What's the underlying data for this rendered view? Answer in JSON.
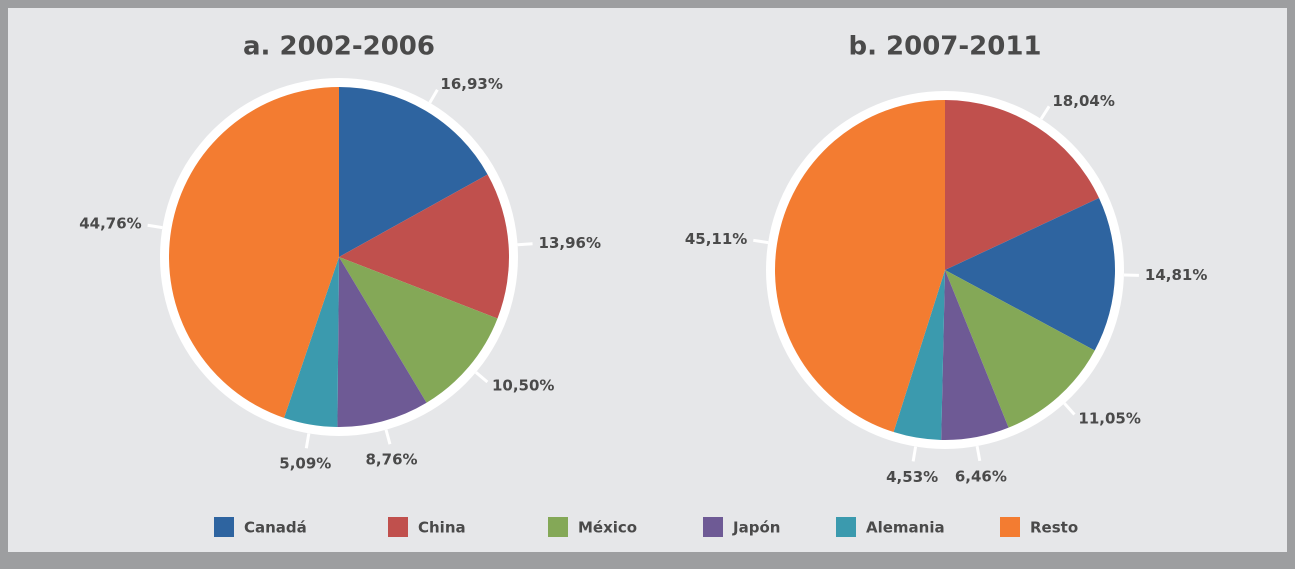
{
  "chart_data": [
    {
      "type": "pie",
      "title": "a. 2002-2006",
      "categories": [
        "Canadá",
        "China",
        "México",
        "Japón",
        "Alemania",
        "Resto"
      ],
      "values": [
        16.93,
        13.96,
        10.5,
        8.76,
        5.09,
        44.76
      ],
      "value_labels": [
        "16,93%",
        "13,96%",
        "10,50%",
        "8,76%",
        "5,09%",
        "44,76%"
      ],
      "colors": [
        "#2e64a0",
        "#c0504d",
        "#84a857",
        "#6e5a95",
        "#3b9aae",
        "#f37c31"
      ]
    },
    {
      "type": "pie",
      "title": "b. 2007-2011",
      "categories": [
        "China",
        "Canadá",
        "México",
        "Japón",
        "Alemania",
        "Resto"
      ],
      "values": [
        18.04,
        14.81,
        11.05,
        6.46,
        4.53,
        45.11
      ],
      "value_labels": [
        "18,04%",
        "14,81%",
        "11,05%",
        "6,46%",
        "4,53%",
        "45,11%"
      ],
      "colors": [
        "#c0504d",
        "#2e64a0",
        "#84a857",
        "#6e5a95",
        "#3b9aae",
        "#f37c31"
      ]
    }
  ]
}
